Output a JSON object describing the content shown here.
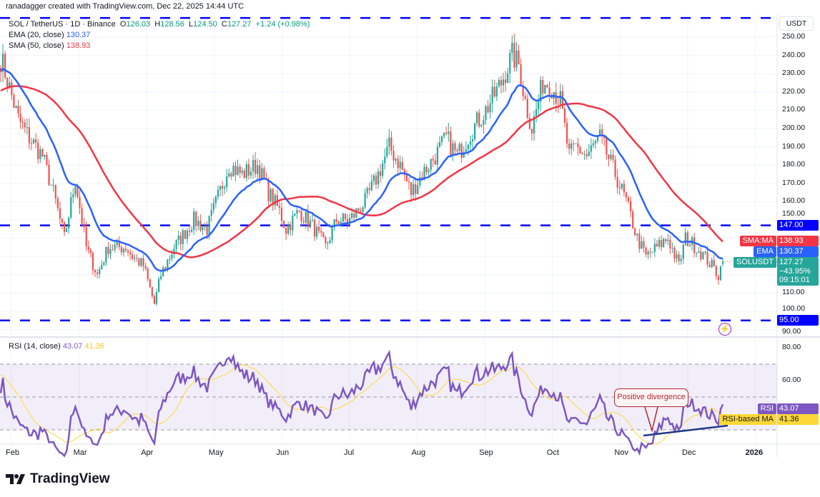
{
  "credit": "ranadagger created with TradingView.com, Dec 22, 2025 14:44 UTC",
  "symbol_legend": {
    "title": "SOL / TetherUS · 1D · Binance",
    "o_label": "O",
    "open": "126.03",
    "h_label": "H",
    "high": "128.56",
    "l_label": "L",
    "low": "124.50",
    "c_label": "C",
    "close": "127.27",
    "change": "+1.24 (+0.98%)"
  },
  "ema_legend": {
    "label": "EMA (20, close)",
    "value": "130.37"
  },
  "sma_legend": {
    "label": "SMA (50, close)",
    "value": "138.93"
  },
  "rsi_legend": {
    "label": "RSI (14, close)",
    "value": "43.07",
    "ma_value": "41.36"
  },
  "currency": "USDT",
  "price_ticks": [
    "250.00",
    "240.00",
    "230.00",
    "220.00",
    "210.00",
    "200.00",
    "190.00",
    "180.00",
    "170.00",
    "160.00",
    "150.00",
    "110.00",
    "100.00",
    "90.00"
  ],
  "rsi_ticks": [
    "80.00",
    "60.00"
  ],
  "months": [
    "Feb",
    "Mar",
    "Apr",
    "May",
    "Jun",
    "Jul",
    "Aug",
    "Sep",
    "Oct",
    "Nov",
    "Dec",
    "2026"
  ],
  "labels": {
    "level_147": "147.00",
    "level_95": "95.00",
    "sma_tag": "SMA:MA",
    "sma_val": "138.93",
    "ema_tag": "EMA",
    "ema_val": "130.37",
    "sym_tag": "SOLUSDT",
    "last_price": "127.27",
    "last_change": "−43.95%",
    "countdown": "09:15:01",
    "rsi_tag": "RSI",
    "rsi_val": "43.07",
    "rsima_tag": "RSI-based MA",
    "rsima_val": "41.36"
  },
  "annotation": "Positive divergence",
  "logo": "TradingView",
  "colors": {
    "up": "#26a69a",
    "down": "#ef5350",
    "ema": "#2962ff",
    "sma": "#f23645",
    "rsi": "#7e57c2",
    "rsi_ma": "#fdd835",
    "level": "#0000ff"
  },
  "chart_data": {
    "type": "candlestick",
    "title": "SOL / TetherUS · 1D · Binance",
    "ylabel": "USDT",
    "ylim": [
      88,
      262
    ],
    "horizontal_levels": [
      260.5,
      147,
      95
    ],
    "last_candle": {
      "open": 126.03,
      "high": 128.56,
      "low": 124.5,
      "close": 127.27
    },
    "waypoints_day_price": [
      [
        0,
        238
      ],
      [
        1,
        235
      ],
      [
        8,
        205
      ],
      [
        13,
        195
      ],
      [
        19,
        185
      ],
      [
        24,
        165
      ],
      [
        29,
        140
      ],
      [
        34,
        172
      ],
      [
        39,
        135
      ],
      [
        44,
        120
      ],
      [
        49,
        135
      ],
      [
        57,
        135
      ],
      [
        60,
        130
      ],
      [
        65,
        125
      ],
      [
        70,
        104
      ],
      [
        73,
        120
      ],
      [
        79,
        135
      ],
      [
        88,
        150
      ],
      [
        94,
        145
      ],
      [
        104,
        180
      ],
      [
        110,
        175
      ],
      [
        117,
        180
      ],
      [
        122,
        165
      ],
      [
        127,
        155
      ],
      [
        130,
        145
      ],
      [
        136,
        155
      ],
      [
        143,
        145
      ],
      [
        148,
        135
      ],
      [
        153,
        150
      ],
      [
        159,
        150
      ],
      [
        166,
        160
      ],
      [
        172,
        175
      ],
      [
        177,
        190
      ],
      [
        182,
        180
      ],
      [
        187,
        165
      ],
      [
        192,
        175
      ],
      [
        198,
        185
      ],
      [
        203,
        195
      ],
      [
        208,
        185
      ],
      [
        215,
        200
      ],
      [
        221,
        210
      ],
      [
        228,
        225
      ],
      [
        233,
        240
      ],
      [
        236,
        235
      ],
      [
        239,
        215
      ],
      [
        242,
        200
      ],
      [
        247,
        225
      ],
      [
        250,
        225
      ],
      [
        255,
        215
      ],
      [
        259,
        185
      ],
      [
        262,
        190
      ],
      [
        267,
        185
      ],
      [
        273,
        195
      ],
      [
        280,
        175
      ],
      [
        285,
        160
      ],
      [
        290,
        140
      ],
      [
        294,
        130
      ],
      [
        299,
        135
      ],
      [
        304,
        140
      ],
      [
        309,
        125
      ],
      [
        312,
        140
      ],
      [
        317,
        135
      ],
      [
        322,
        128
      ],
      [
        327,
        120
      ],
      [
        329,
        127.27
      ]
    ],
    "indicators": {
      "ema": {
        "period": 20,
        "last": 130.37
      },
      "sma": {
        "period": 50,
        "last": 138.93
      },
      "rsi": {
        "period": 14,
        "last": 43.07,
        "ma_last": 41.36,
        "bands": [
          30,
          50,
          70
        ],
        "ylim": [
          25,
          85
        ]
      }
    }
  }
}
